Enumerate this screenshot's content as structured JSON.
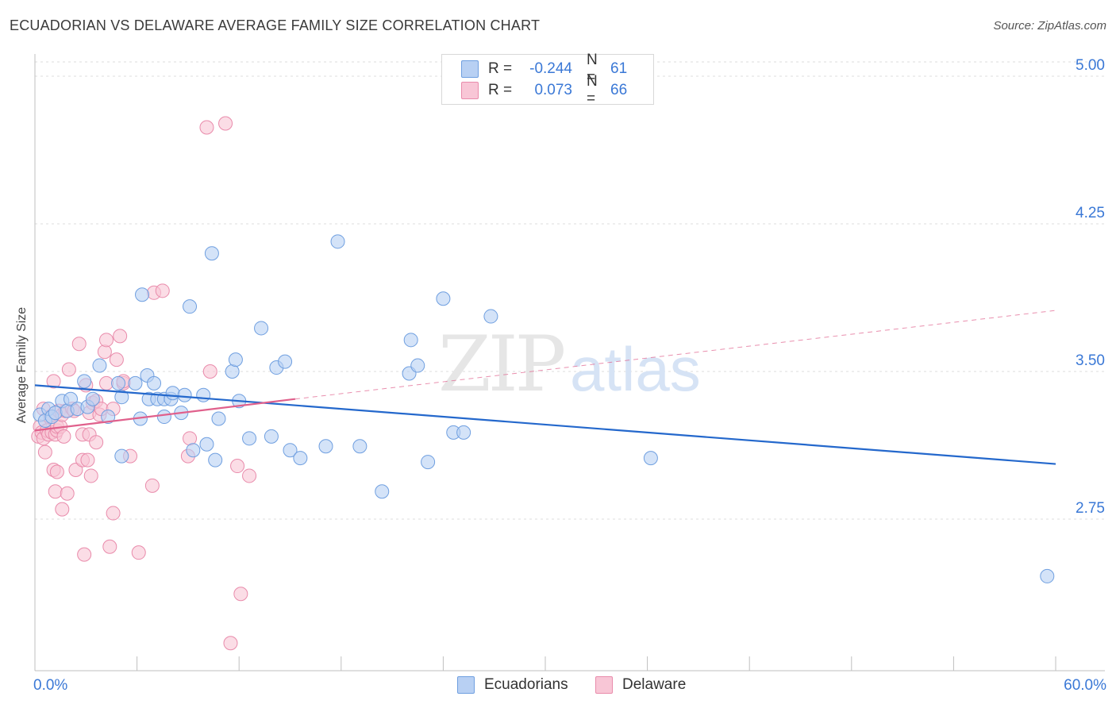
{
  "title": "ECUADORIAN VS DELAWARE AVERAGE FAMILY SIZE CORRELATION CHART",
  "source": "Source: ZipAtlas.com",
  "watermark": {
    "zip": "ZIP",
    "atlas": "atlas"
  },
  "legend": {
    "series1": {
      "r_label": "R =",
      "r_value": "-0.244",
      "n_label": "N =",
      "n_value": "61"
    },
    "series2": {
      "r_label": "R =",
      "r_value": "0.073",
      "n_label": "N =",
      "n_value": "66"
    }
  },
  "bottom_legend": {
    "series1": "Ecuadorians",
    "series2": "Delaware"
  },
  "colors": {
    "blue_fill": "#b8d0f3",
    "blue_stroke": "#6f9fe0",
    "blue_line": "#2468cc",
    "pink_fill": "#f8c6d6",
    "pink_stroke": "#e98bab",
    "pink_line": "#e0608c",
    "tick_text": "#3a78d6"
  },
  "chart_data": {
    "type": "scatter",
    "title": "ECUADORIAN VS DELAWARE AVERAGE FAMILY SIZE CORRELATION CHART",
    "xlabel": "",
    "ylabel": "Average Family Size",
    "xlim": [
      0,
      60
    ],
    "ylim": [
      2.0,
      5.1
    ],
    "x_tick_labels": [
      "0.0%",
      "60.0%"
    ],
    "y_ticks": [
      2.75,
      3.5,
      4.25,
      5.0
    ],
    "y_tick_labels": [
      "2.75",
      "3.50",
      "4.25",
      "5.00"
    ],
    "series": [
      {
        "name": "Ecuadorians",
        "r": -0.244,
        "n": 61,
        "trend": {
          "x": [
            0,
            60
          ],
          "y": [
            3.43,
            3.03
          ]
        },
        "points": [
          [
            0.3,
            3.28
          ],
          [
            0.6,
            3.25
          ],
          [
            0.8,
            3.31
          ],
          [
            1.0,
            3.27
          ],
          [
            1.2,
            3.29
          ],
          [
            1.6,
            3.35
          ],
          [
            1.9,
            3.3
          ],
          [
            2.1,
            3.36
          ],
          [
            2.5,
            3.31
          ],
          [
            2.9,
            3.45
          ],
          [
            3.1,
            3.32
          ],
          [
            3.8,
            3.53
          ],
          [
            3.4,
            3.36
          ],
          [
            4.3,
            3.27
          ],
          [
            4.9,
            3.44
          ],
          [
            5.1,
            3.07
          ],
          [
            5.1,
            3.37
          ],
          [
            5.9,
            3.44
          ],
          [
            6.2,
            3.26
          ],
          [
            6.3,
            3.89
          ],
          [
            6.6,
            3.48
          ],
          [
            6.7,
            3.36
          ],
          [
            7.0,
            3.44
          ],
          [
            7.2,
            3.36
          ],
          [
            7.6,
            3.36
          ],
          [
            7.6,
            3.27
          ],
          [
            8.0,
            3.36
          ],
          [
            8.1,
            3.39
          ],
          [
            8.6,
            3.29
          ],
          [
            8.8,
            3.38
          ],
          [
            9.1,
            3.83
          ],
          [
            9.3,
            3.1
          ],
          [
            9.9,
            3.38
          ],
          [
            10.1,
            3.13
          ],
          [
            10.4,
            4.1
          ],
          [
            10.6,
            3.05
          ],
          [
            10.8,
            3.26
          ],
          [
            11.6,
            3.5
          ],
          [
            11.8,
            3.56
          ],
          [
            12.0,
            3.35
          ],
          [
            12.6,
            3.16
          ],
          [
            13.3,
            3.72
          ],
          [
            13.9,
            3.17
          ],
          [
            14.2,
            3.52
          ],
          [
            14.7,
            3.55
          ],
          [
            15.0,
            3.1
          ],
          [
            15.6,
            3.06
          ],
          [
            17.1,
            3.12
          ],
          [
            17.8,
            4.16
          ],
          [
            19.1,
            3.12
          ],
          [
            20.4,
            2.89
          ],
          [
            22.0,
            3.49
          ],
          [
            22.1,
            3.66
          ],
          [
            22.5,
            3.53
          ],
          [
            23.1,
            3.04
          ],
          [
            24.0,
            3.87
          ],
          [
            24.6,
            3.19
          ],
          [
            25.2,
            3.19
          ],
          [
            26.8,
            3.78
          ],
          [
            36.2,
            3.06
          ],
          [
            59.5,
            2.46
          ]
        ]
      },
      {
        "name": "Delaware",
        "r": 0.073,
        "n": 66,
        "trend_solid": {
          "x": [
            0,
            15.3
          ],
          "y": [
            3.2,
            3.36
          ]
        },
        "trend_dashed": {
          "x": [
            15.3,
            60
          ],
          "y": [
            3.36,
            3.81
          ]
        },
        "points": [
          [
            0.2,
            3.17
          ],
          [
            0.3,
            3.22
          ],
          [
            0.4,
            3.19
          ],
          [
            0.5,
            3.16
          ],
          [
            0.5,
            3.31
          ],
          [
            0.6,
            3.09
          ],
          [
            0.7,
            3.2
          ],
          [
            0.8,
            3.18
          ],
          [
            0.9,
            3.27
          ],
          [
            1.0,
            3.19
          ],
          [
            1.1,
            3.45
          ],
          [
            1.1,
            3.0
          ],
          [
            1.2,
            3.18
          ],
          [
            1.2,
            2.89
          ],
          [
            1.3,
            3.2
          ],
          [
            1.3,
            3.22
          ],
          [
            1.3,
            2.99
          ],
          [
            1.4,
            3.3
          ],
          [
            1.5,
            3.22
          ],
          [
            1.6,
            3.28
          ],
          [
            1.6,
            2.8
          ],
          [
            1.7,
            3.17
          ],
          [
            1.8,
            3.3
          ],
          [
            1.9,
            2.88
          ],
          [
            2.0,
            3.51
          ],
          [
            2.2,
            3.31
          ],
          [
            2.3,
            3.3
          ],
          [
            2.4,
            3.0
          ],
          [
            2.6,
            3.64
          ],
          [
            2.8,
            3.05
          ],
          [
            2.8,
            3.18
          ],
          [
            2.9,
            2.57
          ],
          [
            3.0,
            3.43
          ],
          [
            3.1,
            3.05
          ],
          [
            3.2,
            3.18
          ],
          [
            3.2,
            3.29
          ],
          [
            3.3,
            2.97
          ],
          [
            3.4,
            3.34
          ],
          [
            3.6,
            3.35
          ],
          [
            3.6,
            3.14
          ],
          [
            3.8,
            3.28
          ],
          [
            3.9,
            3.31
          ],
          [
            4.1,
            3.6
          ],
          [
            4.2,
            3.66
          ],
          [
            4.2,
            3.44
          ],
          [
            4.4,
            2.61
          ],
          [
            4.6,
            3.31
          ],
          [
            4.6,
            2.78
          ],
          [
            4.8,
            3.56
          ],
          [
            5.0,
            3.68
          ],
          [
            5.2,
            3.44
          ],
          [
            5.2,
            3.45
          ],
          [
            5.6,
            3.07
          ],
          [
            6.1,
            2.58
          ],
          [
            6.9,
            2.92
          ],
          [
            7.0,
            3.9
          ],
          [
            7.5,
            3.91
          ],
          [
            9.0,
            3.07
          ],
          [
            9.1,
            3.16
          ],
          [
            10.1,
            4.74
          ],
          [
            10.3,
            3.5
          ],
          [
            11.2,
            4.76
          ],
          [
            11.5,
            2.12
          ],
          [
            11.9,
            3.02
          ],
          [
            12.1,
            2.37
          ],
          [
            12.6,
            2.97
          ]
        ]
      }
    ]
  }
}
